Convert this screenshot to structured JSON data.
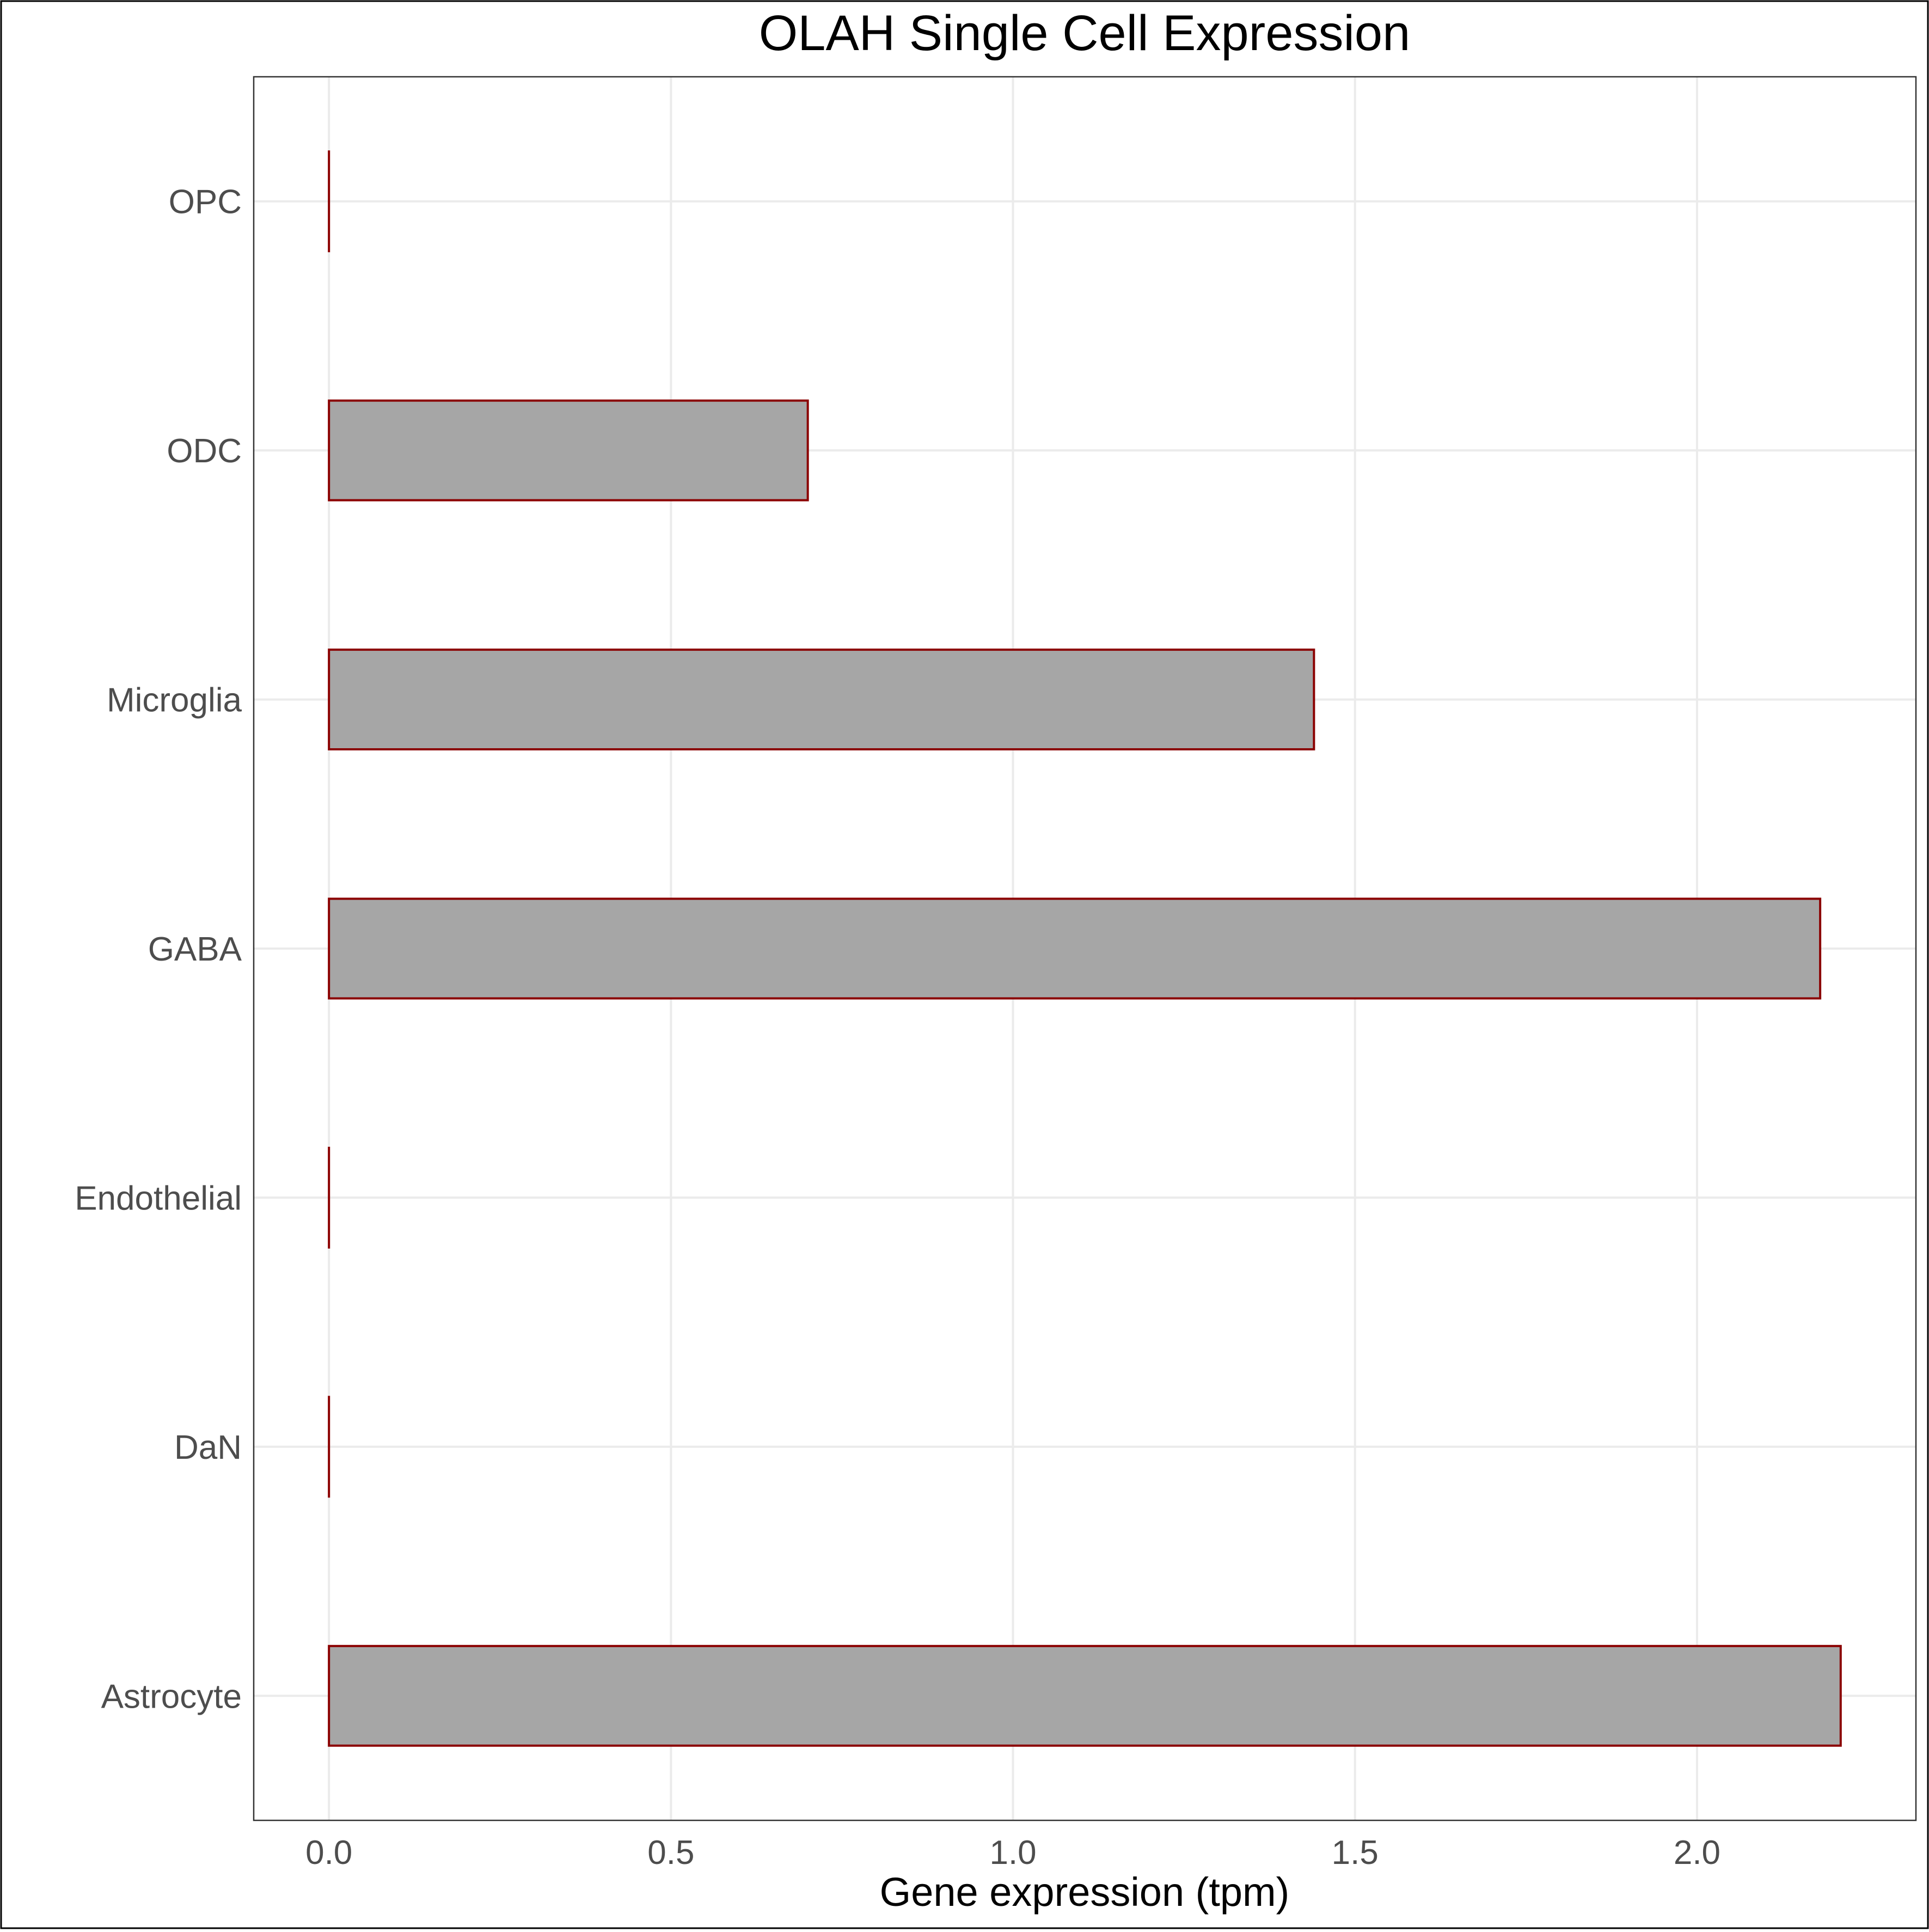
{
  "chart_data": {
    "type": "bar",
    "orientation": "horizontal",
    "title": "OLAH Single Cell Expression",
    "xlabel": "Gene expression (tpm)",
    "ylabel": "",
    "categories": [
      "Astrocyte",
      "DaN",
      "Endothelial",
      "GABA",
      "Microglia",
      "ODC",
      "OPC"
    ],
    "values": [
      2.21,
      0.0,
      0.0,
      2.18,
      1.44,
      0.7,
      0.0
    ],
    "xlim": [
      -0.11,
      2.32
    ],
    "xticks": [
      0.0,
      0.5,
      1.0,
      1.5,
      2.0
    ],
    "xtick_labels": [
      "0.0",
      "0.5",
      "1.0",
      "1.5",
      "2.0"
    ],
    "grid": true,
    "legend": "none",
    "colors": {
      "bar_fill": "#a6a6a6",
      "bar_stroke": "#8b0000",
      "grid": "#ebebeb",
      "panel_border": "#333333",
      "outer_border": "#000000"
    }
  }
}
